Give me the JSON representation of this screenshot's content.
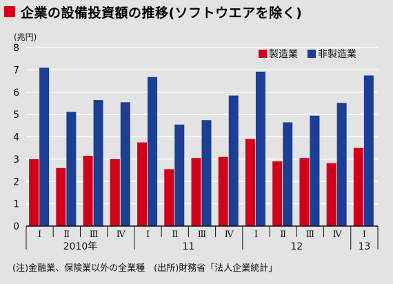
{
  "title": "企業の設備投資額の推移(ソフトウエアを除く)",
  "footnote": "(注)金融業、保険業以外の全業種　(出所)財務省「法人企業統計」",
  "chart_data": {
    "type": "bar",
    "unit_label": "(兆円)",
    "ylim": [
      0,
      8
    ],
    "yticks": [
      0,
      1,
      2,
      3,
      4,
      5,
      6,
      7,
      8
    ],
    "categories": [
      "Ⅰ",
      "Ⅱ",
      "Ⅲ",
      "Ⅳ",
      "Ⅰ",
      "Ⅱ",
      "Ⅲ",
      "Ⅳ",
      "Ⅰ",
      "Ⅱ",
      "Ⅲ",
      "Ⅳ",
      "Ⅰ"
    ],
    "year_labels": [
      {
        "label": "2010年",
        "start": 0,
        "end": 3
      },
      {
        "label": "11",
        "start": 4,
        "end": 7
      },
      {
        "label": "12",
        "start": 8,
        "end": 11
      },
      {
        "label": "13",
        "start": 12,
        "end": 12
      }
    ],
    "series": [
      {
        "name": "製造業",
        "color": "#d2001a",
        "values": [
          3.0,
          2.6,
          3.15,
          3.0,
          3.75,
          2.55,
          3.05,
          3.1,
          3.9,
          2.9,
          3.05,
          2.82,
          3.5
        ]
      },
      {
        "name": "非製造業",
        "color": "#1c3f94",
        "values": [
          7.1,
          5.12,
          5.65,
          5.55,
          6.68,
          4.55,
          4.75,
          5.85,
          6.92,
          4.65,
          4.95,
          5.52,
          6.75
        ]
      }
    ],
    "legend_position": "top-right",
    "grid": true
  }
}
